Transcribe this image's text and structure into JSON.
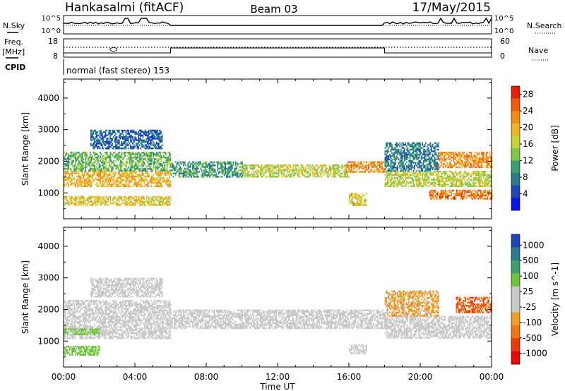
{
  "header": {
    "station": "Hankasalmi (fitACF)",
    "beam": "Beam 03",
    "date": "17/May/2015"
  },
  "labels": {
    "nsky": "N.Sky",
    "nsearch": "N.Search",
    "freq": "Freq.",
    "mhz": "[MHz]",
    "nave": "Nave",
    "cpid": "CPID",
    "cpid_value": "normal (fast stereo) 153",
    "nsky_top": "10^5",
    "nsky_bot": "10^0",
    "freq_top": "18",
    "freq_bot": "8",
    "nave_top": "60",
    "nave_bot": "0",
    "xlabel": "Time UT"
  },
  "colors": {
    "power": [
      "#0a14e6",
      "#1e46b4",
      "#2a7a8c",
      "#3aa06c",
      "#7cc64a",
      "#c8d23a",
      "#f0b428",
      "#f58c14",
      "#f05a0c",
      "#e61e0a"
    ],
    "velocity": [
      "#1e46b4",
      "#2a7a8c",
      "#3aa06c",
      "#6cc43c",
      "#c8c8c8",
      "#c8c8c8",
      "#f0a028",
      "#f07814",
      "#eb3c0c",
      "#e60a0a"
    ]
  },
  "chart_data": [
    {
      "type": "heatmap",
      "title": "Power",
      "ylabel": "Slant Range [km]",
      "xlabel": "Time UT",
      "x_ticks": [
        "00:00",
        "04:00",
        "08:00",
        "12:00",
        "16:00",
        "20:00",
        "00:00"
      ],
      "x_range_hours": [
        0,
        24
      ],
      "y_ticks": [
        1000,
        2000,
        3000,
        4000
      ],
      "ylim": [
        180,
        4600
      ],
      "colorbar": {
        "label": "Power [dB]",
        "ticks": [
          4,
          8,
          12,
          16,
          20,
          24,
          28
        ],
        "range": [
          0,
          30
        ]
      },
      "bands": [
        {
          "t0": 0.0,
          "t1": 6.0,
          "r0": 1200,
          "r1": 1700,
          "v": 20
        },
        {
          "t0": 0.0,
          "t1": 6.0,
          "r0": 1700,
          "r1": 2300,
          "v": 12
        },
        {
          "t0": 0.0,
          "t1": 6.0,
          "r0": 600,
          "r1": 900,
          "v": 18
        },
        {
          "t0": 1.5,
          "t1": 5.5,
          "r0": 2400,
          "r1": 3000,
          "v": 6
        },
        {
          "t0": 6.0,
          "t1": 10.0,
          "r0": 1500,
          "r1": 2000,
          "v": 10
        },
        {
          "t0": 10.0,
          "t1": 16.0,
          "r0": 1500,
          "r1": 1900,
          "v": 16
        },
        {
          "t0": 15.8,
          "t1": 18.0,
          "r0": 1650,
          "r1": 2000,
          "v": 22
        },
        {
          "t0": 16.0,
          "t1": 17.0,
          "r0": 600,
          "r1": 1000,
          "v": 18
        },
        {
          "t0": 18.0,
          "t1": 24.0,
          "r0": 1200,
          "r1": 1700,
          "v": 16
        },
        {
          "t0": 18.0,
          "t1": 21.0,
          "r0": 1700,
          "r1": 2600,
          "v": 8
        },
        {
          "t0": 21.0,
          "t1": 24.0,
          "r0": 1800,
          "r1": 2300,
          "v": 22
        },
        {
          "t0": 20.5,
          "t1": 24.0,
          "r0": 800,
          "r1": 1100,
          "v": 24
        }
      ]
    },
    {
      "type": "heatmap",
      "title": "Velocity",
      "ylabel": "Slant Range [km]",
      "xlabel": "Time UT",
      "x_ticks": [
        "00:00",
        "04:00",
        "08:00",
        "12:00",
        "16:00",
        "20:00",
        "00:00"
      ],
      "x_range_hours": [
        0,
        24
      ],
      "y_ticks": [
        1000,
        2000,
        3000,
        4000
      ],
      "ylim": [
        180,
        4600
      ],
      "colorbar": {
        "label": "Velocity [m s^-1]",
        "ticks": [
          1000,
          500,
          100,
          25,
          -25,
          -100,
          -500,
          -1000
        ]
      },
      "bands": [
        {
          "t0": 0.0,
          "t1": 6.0,
          "r0": 1100,
          "r1": 2300,
          "v": 0
        },
        {
          "t0": 0.0,
          "t1": 2.0,
          "r0": 1200,
          "r1": 1400,
          "v": 150
        },
        {
          "t0": 0.0,
          "t1": 2.0,
          "r0": 550,
          "r1": 850,
          "v": 150
        },
        {
          "t0": 1.5,
          "t1": 5.5,
          "r0": 2400,
          "r1": 3000,
          "v": 50
        },
        {
          "t0": 6.0,
          "t1": 18.0,
          "r0": 1400,
          "r1": 2000,
          "v": 0
        },
        {
          "t0": 16.0,
          "t1": 17.0,
          "r0": 600,
          "r1": 900,
          "v": 0
        },
        {
          "t0": 18.0,
          "t1": 24.0,
          "r0": 1100,
          "r1": 1800,
          "v": 0
        },
        {
          "t0": 18.0,
          "t1": 21.0,
          "r0": 1800,
          "r1": 2600,
          "v": -60
        },
        {
          "t0": 22.0,
          "t1": 24.0,
          "r0": 1900,
          "r1": 2400,
          "v": -300
        }
      ]
    }
  ]
}
